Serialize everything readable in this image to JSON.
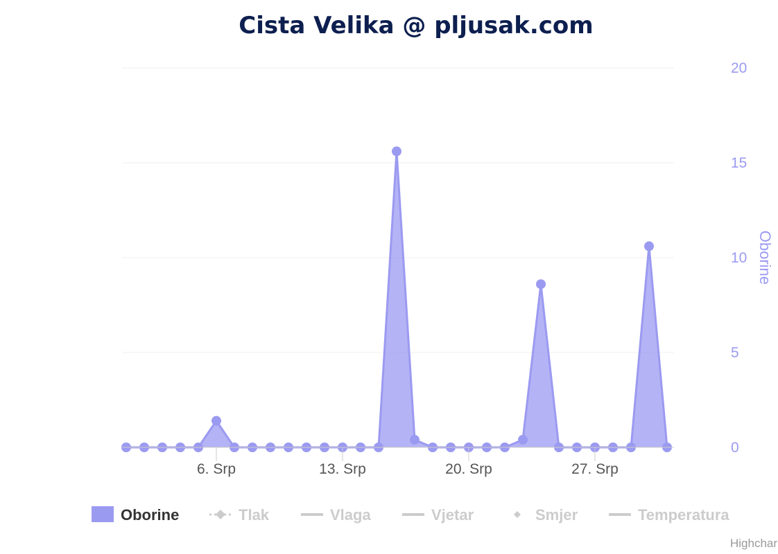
{
  "chart_data": {
    "type": "area",
    "title": "Cista Velika @ pljusak.com",
    "ylabel": "Oborine",
    "ylim": [
      0,
      20
    ],
    "yticks": [
      "0",
      "5",
      "10",
      "15",
      "20"
    ],
    "x_start_day": 1,
    "xticks": [
      {
        "day": 6,
        "label": "6. Srp"
      },
      {
        "day": 13,
        "label": "13. Srp"
      },
      {
        "day": 20,
        "label": "20. Srp"
      },
      {
        "day": 27,
        "label": "27. Srp"
      }
    ],
    "series": [
      {
        "name": "Oborine",
        "color": "#9b9af1",
        "values": [
          0,
          0,
          0,
          0,
          0,
          1.4,
          0,
          0,
          0,
          0,
          0,
          0,
          0,
          0,
          0,
          15.6,
          0.4,
          0,
          0,
          0,
          0,
          0,
          0.4,
          8.6,
          0,
          0,
          0,
          0,
          0,
          10.6,
          0
        ]
      }
    ],
    "grid": true,
    "legend_position": "bottom",
    "legend": [
      {
        "label": "Oborine",
        "active": true,
        "symbol": "area"
      },
      {
        "label": "Tlak",
        "active": false,
        "symbol": "dashed-marker"
      },
      {
        "label": "Vlaga",
        "active": false,
        "symbol": "line"
      },
      {
        "label": "Vjetar",
        "active": false,
        "symbol": "line"
      },
      {
        "label": "Smjer",
        "active": false,
        "symbol": "marker"
      },
      {
        "label": "Temperatura",
        "active": false,
        "symbol": "line"
      }
    ],
    "credits": "Highchar"
  }
}
